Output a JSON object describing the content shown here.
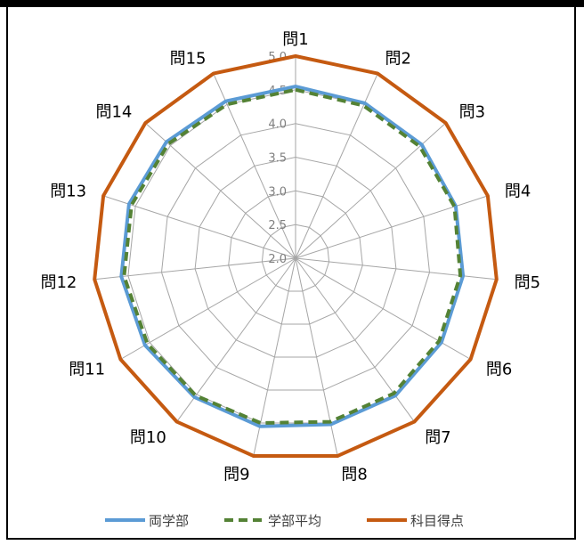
{
  "chart_data": {
    "type": "radar",
    "categories": [
      "問1",
      "問2",
      "問3",
      "問4",
      "問5",
      "問6",
      "問7",
      "問8",
      "問9",
      "問10",
      "問11",
      "問12",
      "問13",
      "問14",
      "問15"
    ],
    "rlim": [
      2.0,
      5.0
    ],
    "ticks": [
      "2.0",
      "2.5",
      "3.0",
      "3.5",
      "4.0",
      "4.5",
      "5.0"
    ],
    "tick_values": [
      2.0,
      2.5,
      3.0,
      3.5,
      4.0,
      4.5,
      5.0
    ],
    "grid": true,
    "legend_position": "bottom",
    "series": [
      {
        "name": "両学部",
        "color": "#5b9bd5",
        "style": "solid",
        "values": [
          4.55,
          4.52,
          4.52,
          4.5,
          4.5,
          4.5,
          4.52,
          4.52,
          4.55,
          4.55,
          4.58,
          4.6,
          4.6,
          4.58,
          4.55
        ]
      },
      {
        "name": "学部平均",
        "color": "#548235",
        "style": "dashed",
        "values": [
          4.5,
          4.48,
          4.48,
          4.48,
          4.46,
          4.46,
          4.48,
          4.48,
          4.5,
          4.52,
          4.54,
          4.56,
          4.56,
          4.54,
          4.5
        ]
      },
      {
        "name": "科目得点",
        "color": "#c55a11",
        "style": "solid",
        "values": [
          5.0,
          5.0,
          5.0,
          5.0,
          5.0,
          5.0,
          5.0,
          5.0,
          5.0,
          5.0,
          5.0,
          5.0,
          5.0,
          5.0,
          5.0
        ]
      }
    ]
  }
}
